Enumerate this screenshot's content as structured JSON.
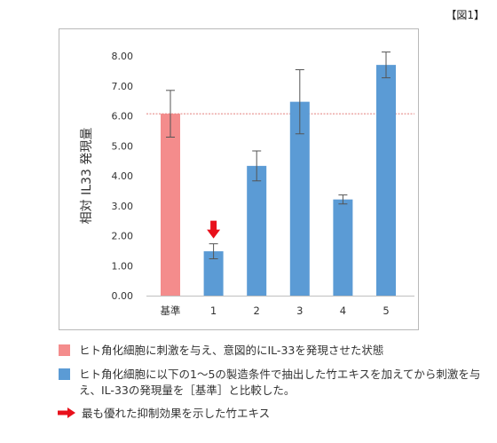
{
  "figure_label": "【図1】",
  "chart_data": {
    "type": "bar",
    "ylabel": "相対 IL33 発現量",
    "xlabel": "",
    "categories": [
      "基準",
      "1",
      "2",
      "3",
      "4",
      "5"
    ],
    "values": [
      6.07,
      1.48,
      4.33,
      6.47,
      3.21,
      7.7
    ],
    "errors": [
      0.78,
      0.25,
      0.5,
      1.07,
      0.15,
      0.43
    ],
    "colors": [
      "#f48c8c",
      "#5b9bd5",
      "#5b9bd5",
      "#5b9bd5",
      "#5b9bd5",
      "#5b9bd5"
    ],
    "ylim": [
      0,
      8
    ],
    "yticks": [
      "0.00",
      "1.00",
      "2.00",
      "3.00",
      "4.00",
      "5.00",
      "6.00",
      "7.00",
      "8.00"
    ],
    "reference_line": 6.07,
    "reference_color": "#d9534f",
    "highlight_category": "1",
    "highlight_color": "#e8101b",
    "grid": false
  },
  "legend": [
    {
      "color": "#f48c8c",
      "text": "ヒト角化細胞に刺激を与え、意図的にIL-33を発現させた状態"
    },
    {
      "color": "#5b9bd5",
      "text": "ヒト角化細胞に以下の1～5の製造条件で抽出した竹エキスを加えてから刺激を与え、IL-33の発現量を［基準］と比較した。"
    },
    {
      "icon": "red-arrow",
      "color": "#e8101b",
      "text": "最も優れた抑制効果を示した竹エキス"
    }
  ]
}
